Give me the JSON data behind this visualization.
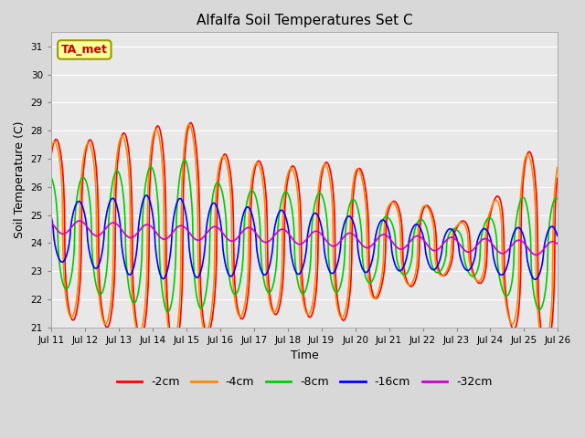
{
  "title": "Alfalfa Soil Temperatures Set C",
  "xlabel": "Time",
  "ylabel": "Soil Temperature (C)",
  "ylim": [
    21.0,
    31.5
  ],
  "yticks": [
    21.0,
    22.0,
    23.0,
    24.0,
    25.0,
    26.0,
    27.0,
    28.0,
    29.0,
    30.0,
    31.0
  ],
  "fig_facecolor": "#d8d8d8",
  "ax_facecolor": "#e8e8e8",
  "series_colors": {
    "-2cm": "#ff0000",
    "-4cm": "#ff8800",
    "-8cm": "#00cc00",
    "-16cm": "#0000ff",
    "-32cm": "#cc00cc"
  },
  "annotation_box": {
    "text": "TA_met",
    "boxstyle": "round,pad=0.3",
    "facecolor": "#ffff99",
    "edgecolor": "#999900",
    "fontsize": 9,
    "fontcolor": "#cc0000",
    "fontweight": "bold"
  },
  "xtick_labels": [
    "Jul 11",
    "Jul 12",
    "Jul 13",
    "Jul 14",
    "Jul 15",
    "Jul 16",
    "Jul 17",
    "Jul 18",
    "Jul 19",
    "Jul 20",
    "Jul 21",
    "Jul 22",
    "Jul 23",
    "Jul 24",
    "Jul 25",
    "Jul 26"
  ],
  "num_days": 15,
  "points_per_day": 48
}
